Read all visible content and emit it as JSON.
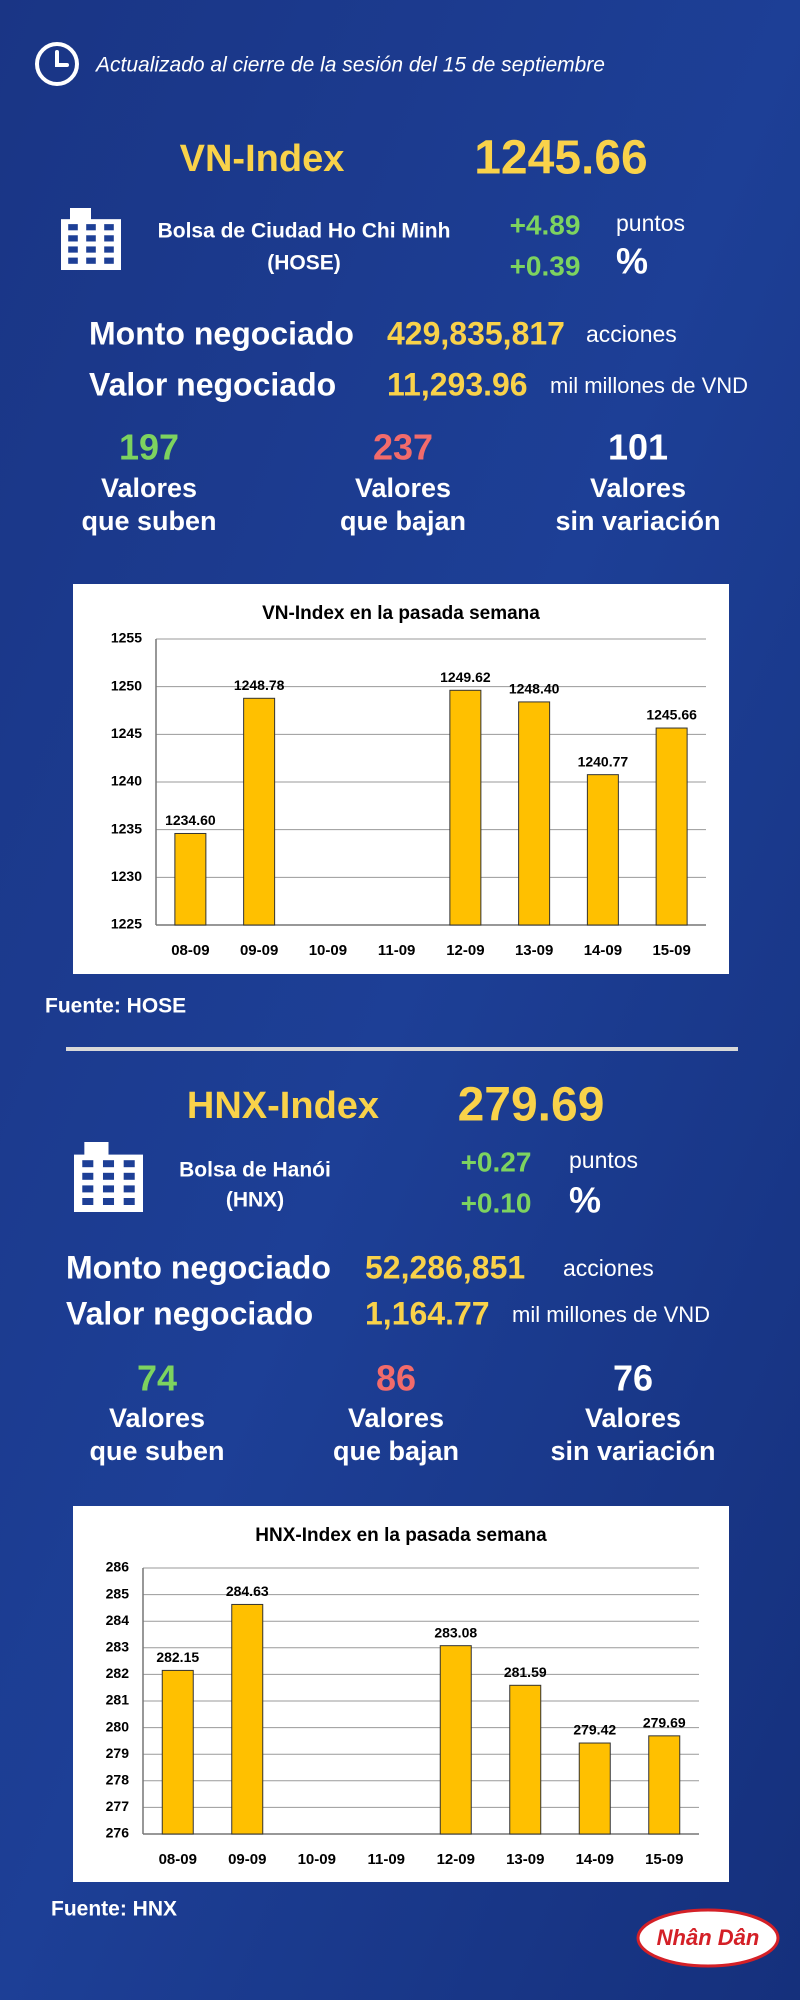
{
  "header": {
    "updated": "Actualizado al cierre de la sesión del 15 de septiembre"
  },
  "sections": [
    {
      "index_name": "VN-Index",
      "index_value": "1245.66",
      "exchange": [
        "Bolsa de Ciudad Ho Chi Minh",
        "(HOSE)"
      ],
      "change_points": "+4.89",
      "points_unit": "puntos",
      "change_percent": "+0.39",
      "percent_unit": "%",
      "volume_label": "Monto negociado",
      "volume": "429,835,817",
      "volume_unit": "acciones",
      "value_label": "Valor negociado",
      "value": "11,293.96",
      "value_unit": "mil millones de VND",
      "stats": [
        {
          "count": "197",
          "label": [
            "Valores",
            "que suben"
          ]
        },
        {
          "count": "237",
          "label": [
            "Valores",
            "que bajan"
          ]
        },
        {
          "count": "101",
          "label": [
            "Valores",
            "sin variación"
          ]
        }
      ],
      "chart": {
        "type": "bar",
        "title": "VN-Index en la pasada semana",
        "categories": [
          "08-09",
          "09-09",
          "10-09",
          "11-09",
          "12-09",
          "13-09",
          "14-09",
          "15-09"
        ],
        "values": [
          1234.6,
          1248.78,
          null,
          null,
          1249.62,
          1248.4,
          1240.77,
          1245.66
        ],
        "value_labels": [
          "1234.60",
          "1248.78",
          null,
          null,
          "1249.62",
          "1248.40",
          "1240.77",
          "1245.66"
        ],
        "color": "#ffc000",
        "ylim": [
          1225,
          1255
        ],
        "yticks": [
          1225,
          1230,
          1235,
          1240,
          1245,
          1250,
          1255
        ],
        "grid": true
      },
      "source": "Fuente: HOSE"
    },
    {
      "index_name": "HNX-Index",
      "index_value": "279.69",
      "exchange": [
        "Bolsa de Hanói",
        "(HNX)"
      ],
      "change_points": "+0.27",
      "points_unit": "puntos",
      "change_percent": "+0.10",
      "percent_unit": "%",
      "volume_label": "Monto negociado",
      "volume": "52,286,851",
      "volume_unit": "acciones",
      "value_label": "Valor negociado",
      "value": "1,164.77",
      "value_unit": "mil millones de VND",
      "stats": [
        {
          "count": "74",
          "label": [
            "Valores",
            "que suben"
          ]
        },
        {
          "count": "86",
          "label": [
            "Valores",
            "que bajan"
          ]
        },
        {
          "count": "76",
          "label": [
            "Valores",
            "sin variación"
          ]
        }
      ],
      "chart": {
        "type": "bar",
        "title": "HNX-Index en la pasada semana",
        "categories": [
          "08-09",
          "09-09",
          "10-09",
          "11-09",
          "12-09",
          "13-09",
          "14-09",
          "15-09"
        ],
        "values": [
          282.15,
          284.63,
          null,
          null,
          283.08,
          281.59,
          279.42,
          279.69
        ],
        "value_labels": [
          "282.15",
          "284.63",
          null,
          null,
          "283.08",
          "281.59",
          "279.42",
          "279.69"
        ],
        "color": "#ffc000",
        "ylim": [
          276,
          286
        ],
        "yticks": [
          276,
          277,
          278,
          279,
          280,
          281,
          282,
          283,
          284,
          285,
          286
        ],
        "grid": true
      },
      "source": "Fuente:  HNX"
    }
  ],
  "logo": "Nhân Dân"
}
